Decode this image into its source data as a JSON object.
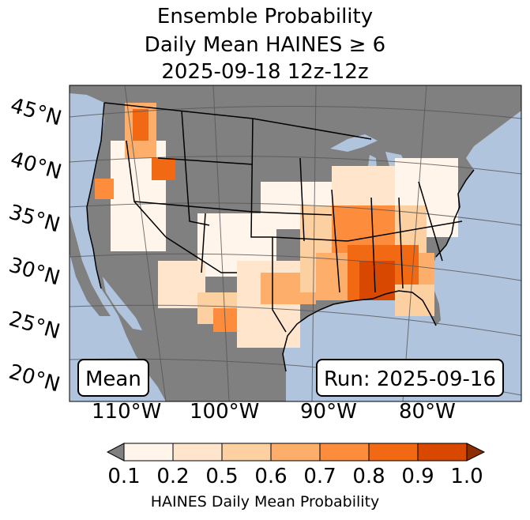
{
  "title": {
    "line1": "Ensemble Probability",
    "line2": "Daily Mean HAINES ≥ 6",
    "line3": "2025-09-18 12z-12z"
  },
  "map": {
    "lat_labels": [
      "45°N",
      "40°N",
      "35°N",
      "30°N",
      "25°N",
      "20°N"
    ],
    "lon_labels": [
      "110°W",
      "100°W",
      "90°W",
      "80°W"
    ],
    "colors": {
      "ocean": "#b0c4de",
      "land_nodata": "#808080",
      "border": "#000000",
      "grid": "#555555"
    }
  },
  "annotations": {
    "left_box": "Mean",
    "right_box": "Run: 2025-09-16"
  },
  "colorbar": {
    "ticks": [
      "0.1",
      "0.2",
      "0.5",
      "0.6",
      "0.7",
      "0.8",
      "0.9",
      "1.0"
    ],
    "colors": [
      "#fff5eb",
      "#fee5cc",
      "#fdd0a2",
      "#fdae6b",
      "#fd8d3c",
      "#f16913",
      "#d94801",
      "#8c2d04"
    ],
    "under_color": "#808080",
    "label": "HAINES Daily Mean Probability"
  }
}
